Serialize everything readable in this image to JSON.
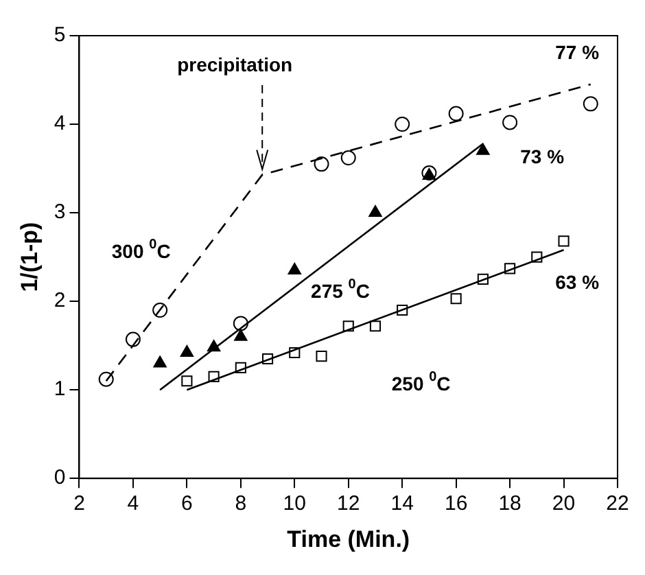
{
  "chart_data": {
    "type": "scatter",
    "xlabel": "Time (Min.)",
    "ylabel": "1/(1-p)",
    "xlim": [
      2,
      22
    ],
    "xticks": [
      2,
      4,
      6,
      8,
      10,
      12,
      14,
      16,
      18,
      20,
      22
    ],
    "ylim": [
      0,
      5
    ],
    "yticks": [
      0,
      1,
      2,
      3,
      4,
      5
    ],
    "grid": false,
    "legend": false,
    "series": [
      {
        "type": "scatter",
        "name": "300 $^{0}$C",
        "marker": "circle",
        "color": "#000000",
        "x": [
          3,
          4,
          5,
          8,
          11,
          12,
          14,
          15,
          16,
          18,
          21
        ],
        "values": [
          1.12,
          1.57,
          1.9,
          1.75,
          3.55,
          3.62,
          4.0,
          3.45,
          4.12,
          4.02,
          4.23
        ]
      },
      {
        "type": "scatter",
        "name": "275 $^{0}$C",
        "marker": "triangle",
        "color": "#000000",
        "x": [
          5,
          6,
          7,
          8,
          10,
          13,
          15,
          17
        ],
        "values": [
          1.3,
          1.42,
          1.48,
          1.6,
          2.35,
          3.0,
          3.42,
          3.7
        ]
      },
      {
        "type": "scatter",
        "name": "250 $^{0}$C",
        "marker": "square",
        "color": "#000000",
        "x": [
          6,
          7,
          8,
          9,
          10,
          11,
          12,
          13,
          14,
          16,
          17,
          18,
          19,
          20
        ],
        "values": [
          1.1,
          1.15,
          1.25,
          1.35,
          1.42,
          1.38,
          1.72,
          1.72,
          1.9,
          2.03,
          2.25,
          2.37,
          2.5,
          2.68
        ]
      },
      {
        "type": "line",
        "line_style": "dashed",
        "color": "#000000",
        "x": [
          3,
          8.8,
          21
        ],
        "values": [
          1.1,
          3.43,
          4.45
        ]
      },
      {
        "type": "line",
        "line_style": "solid",
        "color": "#000000",
        "x": [
          5,
          17
        ],
        "values": [
          1.0,
          3.78
        ]
      },
      {
        "type": "line",
        "line_style": "solid",
        "color": "#000000",
        "x": [
          6,
          20
        ],
        "values": [
          1.0,
          2.58
        ]
      }
    ],
    "annotations": [
      {
        "text": "precipitation",
        "x": 8.8,
        "y": 3.43
      },
      "77 %",
      "73 %",
      "63 %"
    ]
  }
}
